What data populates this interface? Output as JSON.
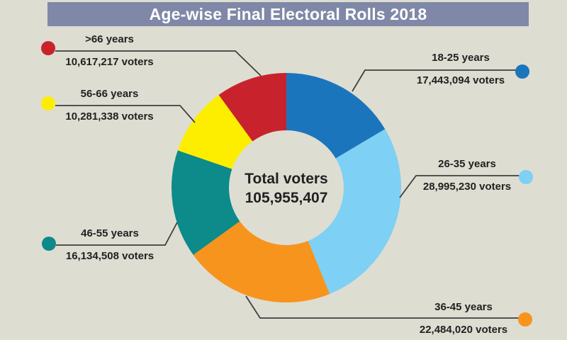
{
  "title": "Age-wise Final Electoral Rolls 2018",
  "center": {
    "label": "Total voters",
    "value": "105,955,407"
  },
  "callouts": [
    {
      "age": "18-25 years",
      "voters": "17,443,094 voters",
      "color": "#1b75bc"
    },
    {
      "age": "26-35 years",
      "voters": "28,995,230 voters",
      "color": "#7ed0f4"
    },
    {
      "age": "36-45 years",
      "voters": "22,484,020 voters",
      "color": "#f7941e"
    },
    {
      "age": "46-55 years",
      "voters": "16,134,508 voters",
      "color": "#0d8a8a"
    },
    {
      "age": "56-66 years",
      "voters": "10,281,338 voters",
      "color": "#fdee00"
    },
    {
      "age": ">66 years",
      "voters": "10,617,217 voters",
      "color": "#c8232c"
    }
  ],
  "chart_data": {
    "type": "pie",
    "donut": true,
    "title": "Age-wise Final Electoral Rolls 2018",
    "categories": [
      "18-25 years",
      "26-35 years",
      "36-45 years",
      "46-55 years",
      "56-66 years",
      ">66 years"
    ],
    "values": [
      17443094,
      28995230,
      22484020,
      16134508,
      10281338,
      10617217
    ],
    "colors": [
      "#1b75bc",
      "#7ed0f4",
      "#f7941e",
      "#0d8a8a",
      "#fdee00",
      "#c8232c"
    ],
    "total": 105955407,
    "total_label": "Total voters",
    "start_angle_deg": 0,
    "direction": "clockwise",
    "legend_position": "callouts"
  },
  "colors": {
    "background": "#deddd2",
    "title_bar": "#7f88a7",
    "title_text": "#ffffff",
    "label_text": "#231f20",
    "leader_line": "#3f3f3f"
  }
}
